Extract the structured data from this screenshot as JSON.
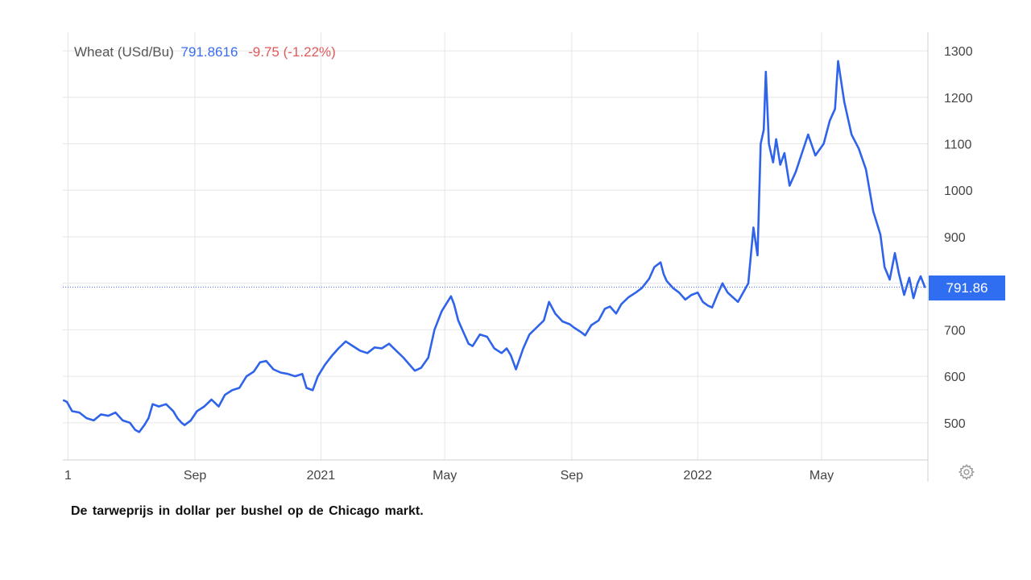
{
  "legend": {
    "name": "Wheat (USd/Bu)",
    "price": "791.8616",
    "change": "-9.75 (-1.22%)"
  },
  "current_price_label": "791.86",
  "caption": "De tarweprijs  in dollar  per bushel  op de Chicago  markt.",
  "icons": {
    "settings": "gear-icon"
  },
  "colors": {
    "line": "#2f63ea",
    "price_tag": "#2f6ef0",
    "change": "#e05a5a",
    "grid": "#e6e6e6"
  },
  "chart_data": {
    "type": "line",
    "title": "",
    "xlabel": "",
    "ylabel": "",
    "ylim": [
      420,
      1340
    ],
    "xlim": [
      "2020-04-26",
      "2022-08-12"
    ],
    "y_ticks": [
      500,
      600,
      700,
      800,
      900,
      1000,
      1100,
      1200,
      1300
    ],
    "y_tick_labels": [
      "500",
      "600",
      "700",
      "800",
      "900",
      "1000",
      "1100",
      "1200",
      "1300"
    ],
    "x_ticks": [
      {
        "date": "2020-05-01",
        "label": "1"
      },
      {
        "date": "2020-09-01",
        "label": "Sep"
      },
      {
        "date": "2021-01-01",
        "label": "2021"
      },
      {
        "date": "2021-05-01",
        "label": "May"
      },
      {
        "date": "2021-09-01",
        "label": "Sep"
      },
      {
        "date": "2022-01-01",
        "label": "2022"
      },
      {
        "date": "2022-05-01",
        "label": "May"
      }
    ],
    "grid": true,
    "last_value": 791.86,
    "series": [
      {
        "name": "Wheat (USd/Bu)",
        "points": [
          [
            "2020-04-27",
            548
          ],
          [
            "2020-04-30",
            545
          ],
          [
            "2020-05-05",
            525
          ],
          [
            "2020-05-12",
            522
          ],
          [
            "2020-05-19",
            510
          ],
          [
            "2020-05-26",
            505
          ],
          [
            "2020-06-02",
            518
          ],
          [
            "2020-06-09",
            515
          ],
          [
            "2020-06-16",
            522
          ],
          [
            "2020-06-23",
            505
          ],
          [
            "2020-06-30",
            500
          ],
          [
            "2020-07-05",
            485
          ],
          [
            "2020-07-09",
            480
          ],
          [
            "2020-07-14",
            495
          ],
          [
            "2020-07-18",
            510
          ],
          [
            "2020-07-22",
            540
          ],
          [
            "2020-07-28",
            535
          ],
          [
            "2020-08-04",
            540
          ],
          [
            "2020-08-11",
            525
          ],
          [
            "2020-08-15",
            510
          ],
          [
            "2020-08-19",
            500
          ],
          [
            "2020-08-22",
            495
          ],
          [
            "2020-08-28",
            505
          ],
          [
            "2020-09-03",
            525
          ],
          [
            "2020-09-10",
            535
          ],
          [
            "2020-09-17",
            550
          ],
          [
            "2020-09-24",
            535
          ],
          [
            "2020-09-30",
            560
          ],
          [
            "2020-10-07",
            570
          ],
          [
            "2020-10-14",
            575
          ],
          [
            "2020-10-21",
            600
          ],
          [
            "2020-10-28",
            610
          ],
          [
            "2020-11-03",
            630
          ],
          [
            "2020-11-09",
            633
          ],
          [
            "2020-11-16",
            615
          ],
          [
            "2020-11-23",
            608
          ],
          [
            "2020-11-30",
            605
          ],
          [
            "2020-12-07",
            600
          ],
          [
            "2020-12-14",
            605
          ],
          [
            "2020-12-18",
            575
          ],
          [
            "2020-12-24",
            570
          ],
          [
            "2020-12-29",
            600
          ],
          [
            "2021-01-05",
            625
          ],
          [
            "2021-01-12",
            645
          ],
          [
            "2021-01-18",
            660
          ],
          [
            "2021-01-25",
            675
          ],
          [
            "2021-02-01",
            665
          ],
          [
            "2021-02-08",
            655
          ],
          [
            "2021-02-15",
            650
          ],
          [
            "2021-02-22",
            662
          ],
          [
            "2021-03-01",
            660
          ],
          [
            "2021-03-08",
            670
          ],
          [
            "2021-03-15",
            655
          ],
          [
            "2021-03-22",
            640
          ],
          [
            "2021-03-29",
            622
          ],
          [
            "2021-04-02",
            612
          ],
          [
            "2021-04-08",
            618
          ],
          [
            "2021-04-15",
            640
          ],
          [
            "2021-04-21",
            700
          ],
          [
            "2021-04-28",
            740
          ],
          [
            "2021-05-03",
            758
          ],
          [
            "2021-05-07",
            772
          ],
          [
            "2021-05-10",
            755
          ],
          [
            "2021-05-14",
            720
          ],
          [
            "2021-05-18",
            700
          ],
          [
            "2021-05-24",
            670
          ],
          [
            "2021-05-28",
            665
          ],
          [
            "2021-06-04",
            690
          ],
          [
            "2021-06-11",
            685
          ],
          [
            "2021-06-18",
            660
          ],
          [
            "2021-06-25",
            650
          ],
          [
            "2021-06-30",
            660
          ],
          [
            "2021-07-04",
            645
          ],
          [
            "2021-07-09",
            615
          ],
          [
            "2021-07-16",
            660
          ],
          [
            "2021-07-22",
            690
          ],
          [
            "2021-07-29",
            705
          ],
          [
            "2021-08-05",
            720
          ],
          [
            "2021-08-10",
            760
          ],
          [
            "2021-08-16",
            735
          ],
          [
            "2021-08-23",
            718
          ],
          [
            "2021-08-30",
            712
          ],
          [
            "2021-09-03",
            705
          ],
          [
            "2021-09-10",
            695
          ],
          [
            "2021-09-14",
            688
          ],
          [
            "2021-09-20",
            710
          ],
          [
            "2021-09-27",
            720
          ],
          [
            "2021-10-03",
            745
          ],
          [
            "2021-10-08",
            750
          ],
          [
            "2021-10-14",
            735
          ],
          [
            "2021-10-19",
            755
          ],
          [
            "2021-10-26",
            770
          ],
          [
            "2021-11-02",
            780
          ],
          [
            "2021-11-08",
            790
          ],
          [
            "2021-11-15",
            810
          ],
          [
            "2021-11-20",
            835
          ],
          [
            "2021-11-26",
            845
          ],
          [
            "2021-11-29",
            820
          ],
          [
            "2021-12-02",
            805
          ],
          [
            "2021-12-08",
            790
          ],
          [
            "2021-12-14",
            780
          ],
          [
            "2021-12-20",
            765
          ],
          [
            "2021-12-26",
            775
          ],
          [
            "2022-01-01",
            780
          ],
          [
            "2022-01-06",
            760
          ],
          [
            "2022-01-11",
            752
          ],
          [
            "2022-01-15",
            748
          ],
          [
            "2022-01-20",
            775
          ],
          [
            "2022-01-25",
            800
          ],
          [
            "2022-01-30",
            780
          ],
          [
            "2022-02-04",
            770
          ],
          [
            "2022-02-09",
            760
          ],
          [
            "2022-02-14",
            780
          ],
          [
            "2022-02-19",
            800
          ],
          [
            "2022-02-24",
            920
          ],
          [
            "2022-02-28",
            860
          ],
          [
            "2022-03-03",
            1100
          ],
          [
            "2022-03-06",
            1130
          ],
          [
            "2022-03-08",
            1255
          ],
          [
            "2022-03-11",
            1100
          ],
          [
            "2022-03-15",
            1060
          ],
          [
            "2022-03-18",
            1110
          ],
          [
            "2022-03-22",
            1055
          ],
          [
            "2022-03-26",
            1080
          ],
          [
            "2022-03-31",
            1010
          ],
          [
            "2022-04-06",
            1040
          ],
          [
            "2022-04-12",
            1080
          ],
          [
            "2022-04-18",
            1120
          ],
          [
            "2022-04-25",
            1075
          ],
          [
            "2022-05-03",
            1100
          ],
          [
            "2022-05-09",
            1150
          ],
          [
            "2022-05-14",
            1175
          ],
          [
            "2022-05-17",
            1278
          ],
          [
            "2022-05-23",
            1190
          ],
          [
            "2022-05-30",
            1120
          ],
          [
            "2022-06-06",
            1090
          ],
          [
            "2022-06-13",
            1045
          ],
          [
            "2022-06-20",
            955
          ],
          [
            "2022-06-27",
            905
          ],
          [
            "2022-07-01",
            835
          ],
          [
            "2022-07-06",
            808
          ],
          [
            "2022-07-11",
            865
          ],
          [
            "2022-07-15",
            820
          ],
          [
            "2022-07-20",
            775
          ],
          [
            "2022-07-25",
            812
          ],
          [
            "2022-07-29",
            768
          ],
          [
            "2022-08-02",
            800
          ],
          [
            "2022-08-05",
            815
          ],
          [
            "2022-08-09",
            792
          ]
        ]
      }
    ]
  }
}
